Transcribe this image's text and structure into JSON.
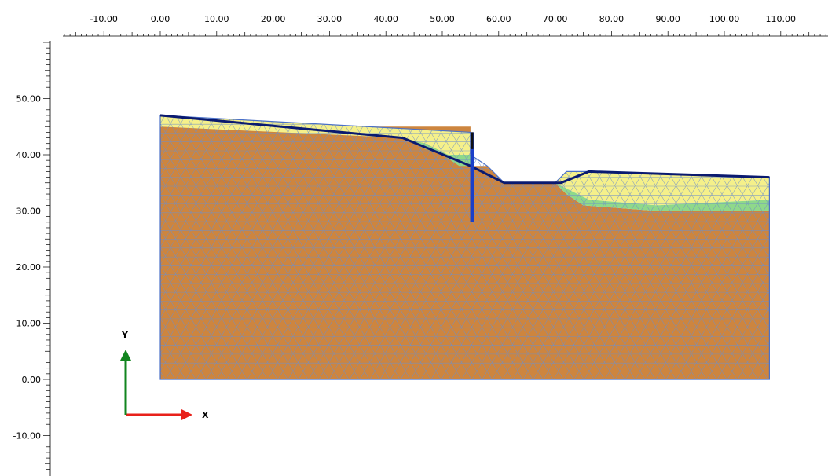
{
  "rulers": {
    "x_tick_labels": [
      "-10.00",
      "0.00",
      "10.00",
      "20.00",
      "30.00",
      "40.00",
      "50.00",
      "60.00",
      "70.00",
      "80.00",
      "90.00",
      "100.00",
      "110.00"
    ],
    "y_tick_labels": [
      "50.00",
      "40.00",
      "30.00",
      "20.00",
      "10.00",
      "0.00",
      "-10.00"
    ]
  },
  "axis_indicator": {
    "x_label": "X",
    "y_label": "Y",
    "x_color": "#e8211a",
    "y_color": "#12851f"
  },
  "model": {
    "colors": {
      "clay": "#cd853f",
      "sand": "#f5f08a",
      "peat": "#8fd98a",
      "mesh_line": "#6f8fc9",
      "boundary": "#4a70c8",
      "phreatic": "#0a1a70",
      "wall": "#1a3fc8",
      "wall_top": "#111111"
    },
    "geometry_units": "m",
    "extent": {
      "x_min": 0,
      "x_max": 108,
      "y_min": 0,
      "y_max": 45
    },
    "clay_outline": [
      [
        0,
        45
      ],
      [
        0,
        0
      ],
      [
        108,
        0
      ],
      [
        108,
        30
      ],
      [
        88,
        30
      ],
      [
        75,
        31
      ],
      [
        72,
        33
      ],
      [
        70,
        35
      ],
      [
        67,
        35
      ],
      [
        63,
        35
      ],
      [
        61,
        35
      ],
      [
        58,
        38
      ],
      [
        55,
        38
      ],
      [
        55,
        40
      ],
      [
        55,
        45
      ]
    ],
    "sand_upper": [
      [
        0,
        47
      ],
      [
        55,
        44
      ],
      [
        55,
        40
      ],
      [
        51,
        40
      ],
      [
        47,
        42
      ],
      [
        43,
        43
      ],
      [
        0,
        45
      ]
    ],
    "peat_upper": [
      [
        43,
        43
      ],
      [
        47,
        42
      ],
      [
        51,
        40
      ],
      [
        55,
        40
      ],
      [
        55,
        38
      ],
      [
        53,
        38
      ],
      [
        50,
        40
      ],
      [
        47,
        41
      ]
    ],
    "sand_right": [
      [
        72,
        37
      ],
      [
        76,
        37
      ],
      [
        108,
        36
      ],
      [
        108,
        32
      ],
      [
        88,
        31
      ],
      [
        76,
        32
      ],
      [
        70,
        35
      ]
    ],
    "peat_right": [
      [
        70,
        35
      ],
      [
        76,
        32
      ],
      [
        88,
        31
      ],
      [
        108,
        32
      ],
      [
        108,
        30
      ],
      [
        88,
        30
      ],
      [
        75,
        31
      ],
      [
        72,
        33
      ]
    ],
    "phreatic_line": [
      [
        0,
        47
      ],
      [
        43,
        43
      ],
      [
        55,
        38
      ],
      [
        61,
        35
      ],
      [
        71,
        35
      ],
      [
        76,
        37
      ],
      [
        108,
        36
      ]
    ],
    "wall": {
      "x": 55.3,
      "y_top": 44,
      "y_bottom": 28
    }
  }
}
